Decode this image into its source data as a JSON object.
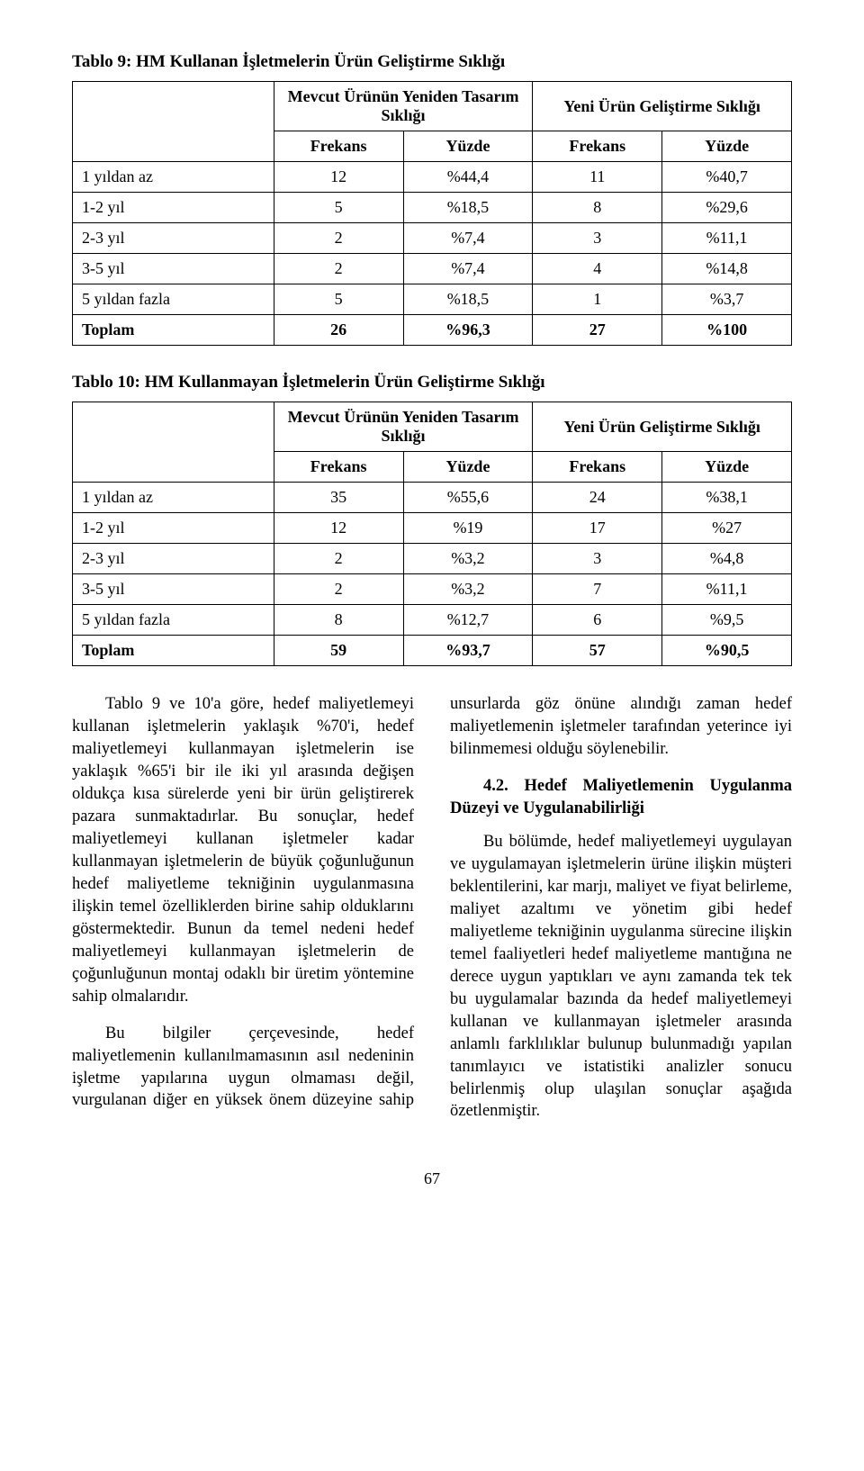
{
  "colors": {
    "background": "#ffffff",
    "text": "#000000",
    "border": "#000000"
  },
  "typography": {
    "body_font": "Georgia, 'Times New Roman', serif",
    "body_size_pt": 14,
    "title_size_pt": 14,
    "title_weight": "bold"
  },
  "table9": {
    "title": "Tablo 9: HM Kullanan İşletmelerin Ürün Geliştirme Sıklığı",
    "group1": "Mevcut Ürünün Yeniden Tasarım Sıklığı",
    "group2": "Yeni Ürün Geliştirme Sıklığı",
    "sub1": "Frekans",
    "sub2": "Yüzde",
    "sub3": "Frekans",
    "sub4": "Yüzde",
    "rows": [
      {
        "label": "1 yıldan az",
        "a": "12",
        "b": "%44,4",
        "c": "11",
        "d": "%40,7"
      },
      {
        "label": "1-2 yıl",
        "a": "5",
        "b": "%18,5",
        "c": "8",
        "d": "%29,6"
      },
      {
        "label": "2-3 yıl",
        "a": "2",
        "b": "%7,4",
        "c": "3",
        "d": "%11,1"
      },
      {
        "label": "3-5 yıl",
        "a": "2",
        "b": "%7,4",
        "c": "4",
        "d": "%14,8"
      },
      {
        "label": "5 yıldan fazla",
        "a": "5",
        "b": "%18,5",
        "c": "1",
        "d": "%3,7"
      }
    ],
    "total": {
      "label": "Toplam",
      "a": "26",
      "b": "%96,3",
      "c": "27",
      "d": "%100"
    }
  },
  "table10": {
    "title": "Tablo 10: HM Kullanmayan İşletmelerin Ürün Geliştirme Sıklığı",
    "group1": "Mevcut Ürünün Yeniden Tasarım Sıklığı",
    "group2": "Yeni Ürün Geliştirme Sıklığı",
    "sub1": "Frekans",
    "sub2": "Yüzde",
    "sub3": "Frekans",
    "sub4": "Yüzde",
    "rows": [
      {
        "label": "1 yıldan az",
        "a": "35",
        "b": "%55,6",
        "c": "24",
        "d": "%38,1"
      },
      {
        "label": "1-2 yıl",
        "a": "12",
        "b": "%19",
        "c": "17",
        "d": "%27"
      },
      {
        "label": "2-3 yıl",
        "a": "2",
        "b": "%3,2",
        "c": "3",
        "d": "%4,8"
      },
      {
        "label": "3-5 yıl",
        "a": "2",
        "b": "%3,2",
        "c": "7",
        "d": "%11,1"
      },
      {
        "label": "5 yıldan fazla",
        "a": "8",
        "b": "%12,7",
        "c": "6",
        "d": "%9,5"
      }
    ],
    "total": {
      "label": "Toplam",
      "a": "59",
      "b": "%93,7",
      "c": "57",
      "d": "%90,5"
    }
  },
  "body": {
    "p1": "Tablo 9 ve 10'a göre, hedef maliyetlemeyi kullanan işletmelerin yaklaşık %70'i, hedef maliyetlemeyi kullanmayan işletmelerin ise yaklaşık %65'i bir ile iki yıl arasında değişen oldukça kısa sürelerde yeni bir ürün geliştirerek pazara sunmaktadırlar. Bu sonuçlar, hedef maliyetlemeyi kullanan işletmeler kadar kullanmayan işletmelerin de büyük çoğunluğunun hedef maliyetleme tekniğinin uygulanmasına ilişkin temel özelliklerden birine sahip olduklarını göstermektedir. Bunun da temel nedeni hedef maliyetlemeyi kullanmayan işletmelerin de çoğunluğunun montaj o­daklı bir üretim yöntemine sahip olmalarıdır.",
    "p2": "Bu bilgiler çerçevesinde, hedef maliyetlemenin kullanılmamasının asıl nedeninin işletme yapılarına uygun olmaması değil, vurgulanan diğer en yüksek önem düzeyine sahip unsurlarda göz önüne alındığı zaman hedef maliyetlemenin işletmeler tarafından yeterince iyi bilinmemesi olduğu söylenebilir.",
    "h42": "4.2. Hedef Maliyetlemenin Uygulanma Düzeyi ve Uygulanabilirliği",
    "p3": "Bu bölümde, hedef maliyetlemeyi uygulayan ve uygulamayan işletmelerin ürüne ilişkin müşteri beklentilerini, kar marjı, maliyet ve fiyat belirleme, maliyet azaltımı ve yönetim gibi hedef maliyetleme tekniğinin uygulanma sürecine ilişkin temel faaliyetleri hedef maliyetleme mantığına ne derece uygun yaptıkları ve aynı zamanda tek tek bu uygulamalar bazında da hedef maliyetlemeyi kullanan ve kullanmayan işletmeler arasında anlamlı farklılıklar bulunup bulunmadığı yapılan tanımlayıcı ve istatistiki analizler sonucu belirlenmiş olup ulaşılan sonuçlar aşağıda özetlenmiştir."
  },
  "page_number": "67"
}
